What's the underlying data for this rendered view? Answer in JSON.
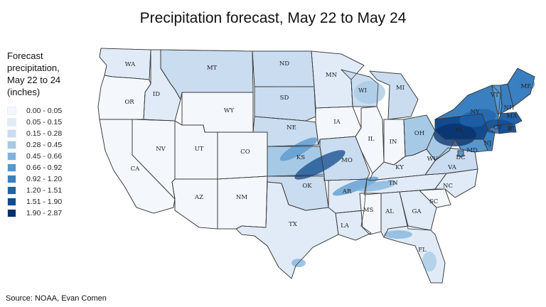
{
  "title": "Precipitation forecast, May 22 to May 24",
  "legend": {
    "title_lines": [
      "Forecast",
      "precipitation,",
      "May 22 to 24",
      "(inches)"
    ],
    "bins": [
      {
        "label": "0.00 - 0.05",
        "color": "#f4f8fd"
      },
      {
        "label": "0.05 - 0.15",
        "color": "#e0ebf7"
      },
      {
        "label": "0.15 - 0.28",
        "color": "#c9dcf0"
      },
      {
        "label": "0.28 - 0.45",
        "color": "#a6c9e6"
      },
      {
        "label": "0.45 - 0.66",
        "color": "#80b2dc"
      },
      {
        "label": "0.66 - 0.92",
        "color": "#5797cd"
      },
      {
        "label": "0.92 - 1.20",
        "color": "#3a7fc0"
      },
      {
        "label": "1.20 - 1.51",
        "color": "#2263ab"
      },
      {
        "label": "1.51 - 1.90",
        "color": "#114b8e"
      },
      {
        "label": "1.90 - 2.87",
        "color": "#08306b"
      }
    ]
  },
  "states": [
    {
      "abbr": "WA",
      "level": 1
    },
    {
      "abbr": "OR",
      "level": 0
    },
    {
      "abbr": "CA",
      "level": 0
    },
    {
      "abbr": "ID",
      "level": 1
    },
    {
      "abbr": "NV",
      "level": 0
    },
    {
      "abbr": "MT",
      "level": 2
    },
    {
      "abbr": "WY",
      "level": 0
    },
    {
      "abbr": "UT",
      "level": 0
    },
    {
      "abbr": "AZ",
      "level": 0
    },
    {
      "abbr": "CO",
      "level": 0
    },
    {
      "abbr": "NM",
      "level": 0
    },
    {
      "abbr": "ND",
      "level": 2
    },
    {
      "abbr": "SD",
      "level": 2
    },
    {
      "abbr": "NE",
      "level": 2
    },
    {
      "abbr": "KS",
      "level": 3
    },
    {
      "abbr": "OK",
      "level": 2
    },
    {
      "abbr": "TX",
      "level": 1
    },
    {
      "abbr": "MN",
      "level": 1
    },
    {
      "abbr": "IA",
      "level": 0
    },
    {
      "abbr": "MO",
      "level": 2
    },
    {
      "abbr": "AR",
      "level": 1
    },
    {
      "abbr": "LA",
      "level": 1
    },
    {
      "abbr": "WI",
      "level": 2
    },
    {
      "abbr": "MI",
      "level": 2
    },
    {
      "abbr": "IL",
      "level": 0
    },
    {
      "abbr": "IN",
      "level": 0
    },
    {
      "abbr": "OH",
      "level": 3
    },
    {
      "abbr": "KY",
      "level": 1
    },
    {
      "abbr": "TN",
      "level": 1
    },
    {
      "abbr": "MS",
      "level": 0
    },
    {
      "abbr": "AL",
      "level": 1
    },
    {
      "abbr": "GA",
      "level": 1
    },
    {
      "abbr": "FL",
      "level": 1
    },
    {
      "abbr": "SC",
      "level": 0
    },
    {
      "abbr": "NC",
      "level": 1
    },
    {
      "abbr": "VA",
      "level": 2
    },
    {
      "abbr": "WV",
      "level": 3
    },
    {
      "abbr": "PA",
      "level": 8
    },
    {
      "abbr": "NY",
      "level": 6
    },
    {
      "abbr": "MD",
      "level": 5
    },
    {
      "abbr": "DC",
      "level": 5
    },
    {
      "abbr": "NJ",
      "level": 6
    },
    {
      "abbr": "CT",
      "level": 7
    },
    {
      "abbr": "RI",
      "level": 7
    },
    {
      "abbr": "MA",
      "level": 7
    },
    {
      "abbr": "VT",
      "level": 5
    },
    {
      "abbr": "NH",
      "level": 6
    },
    {
      "abbr": "ME",
      "level": 6
    }
  ],
  "source": "Source: NOAA, Evan Comen"
}
